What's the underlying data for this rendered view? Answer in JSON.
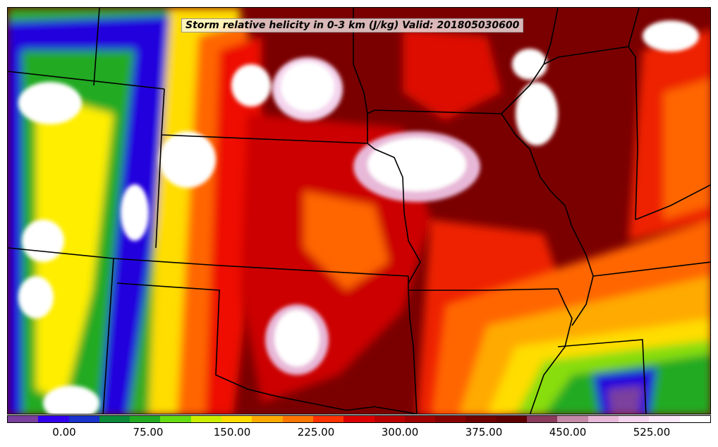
{
  "title": "Storm relative helicity in 0-3 km (J/kg) Valid: 201805030600",
  "colorbar": {
    "colors": [
      "#7b3f9e",
      "#3300ee",
      "#1a33cc",
      "#0a8a3a",
      "#22aa22",
      "#66dd11",
      "#ccee00",
      "#ffdd00",
      "#ffaa00",
      "#ff7700",
      "#ff3300",
      "#dd0000",
      "#bb0000",
      "#a00000",
      "#880000",
      "#700000",
      "#600000",
      "#8a3a5a",
      "#c48aa8",
      "#e8b8d8",
      "#f4d4ee",
      "#fbe8f8",
      "#ffffff"
    ],
    "tick_labels": [
      "0.00",
      "75.00",
      "150.00",
      "225.00",
      "300.00",
      "375.00",
      "450.00",
      "525.00"
    ]
  },
  "map": {
    "field": "storm relative helicity 0-3 km",
    "units": "J/kg"
  }
}
